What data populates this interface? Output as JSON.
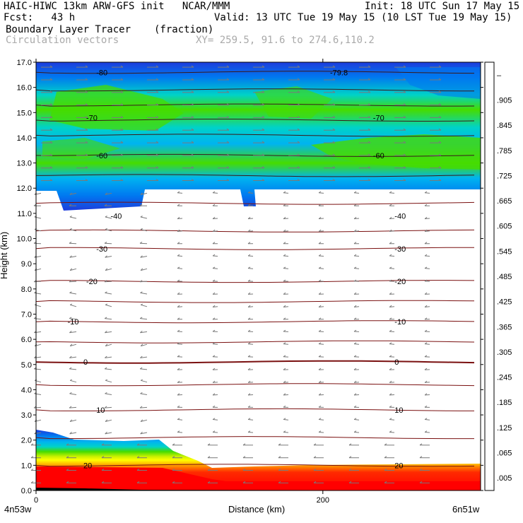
{
  "header": {
    "line1_left": "HAIC-HIWC 13km ARW-GFS init   NCAR/MMM",
    "line1_right": "Init: 18 UTC Sun 17 May 15",
    "line2_left": "Fcst:   43 h",
    "line2_right": "Valid: 13 UTC Tue 19 May 15 (10 LST Tue 19 May 15)",
    "line3_left": "Boundary Layer Tracer",
    "line3_mid": "(fraction)",
    "line4_left": "Circulation vectors",
    "line4_mid": "XY= 259.5, 91.6 to 274.6,110.2"
  },
  "chart_data": {
    "type": "heatmap",
    "xlabel": "Distance (km)",
    "ylabel": "Height (km)",
    "xlim": [
      0,
      310
    ],
    "ylim": [
      0,
      17
    ],
    "x_ticks": [
      {
        "value": 0,
        "label": "0"
      },
      {
        "value": 200,
        "label": "200"
      }
    ],
    "x_end_labels": {
      "left": "4n53w",
      "right": "6n51w"
    },
    "y_ticks": [
      "0.0",
      "1.0",
      "2.0",
      "3.0",
      "4.0",
      "5.0",
      "6.0",
      "7.0",
      "8.0",
      "9.0",
      "10.0",
      "11.0",
      "12.0",
      "13.0",
      "14.0",
      "15.0",
      "16.0",
      "17.0"
    ],
    "colorbar": {
      "labels": [
        "–",
        ".905",
        ".845",
        ".785",
        ".725",
        ".665",
        ".605",
        ".545",
        ".485",
        ".425",
        ".365",
        ".305",
        ".245",
        ".185",
        ".125",
        ".065",
        ".005"
      ],
      "colors": [
        "#ff0000",
        "#ff2a00",
        "#ff5000",
        "#ff7800",
        "#ff9a00",
        "#ffbe00",
        "#ffe000",
        "#ffff00",
        "#c8f000",
        "#96e600",
        "#46dc00",
        "#00d26e",
        "#00d2c8",
        "#00b4f0",
        "#0078f0",
        "#1e3cdc",
        "#ffffff"
      ]
    },
    "isotherm_labels": [
      {
        "text": "-80",
        "x": 42,
        "y": 16.6
      },
      {
        "text": "-79.8",
        "x": 205,
        "y": 16.6
      },
      {
        "text": "-70",
        "x": 35,
        "y": 14.8
      },
      {
        "text": "-70",
        "x": 235,
        "y": 14.8
      },
      {
        "text": "-60",
        "x": 42,
        "y": 13.3
      },
      {
        "text": "-60",
        "x": 235,
        "y": 13.3
      },
      {
        "text": "-40",
        "x": 52,
        "y": 10.9
      },
      {
        "text": "-40",
        "x": 250,
        "y": 10.9
      },
      {
        "text": "-30",
        "x": 42,
        "y": 9.6
      },
      {
        "text": "-30",
        "x": 250,
        "y": 9.6
      },
      {
        "text": "-20",
        "x": 35,
        "y": 8.3
      },
      {
        "text": "-20",
        "x": 250,
        "y": 8.3
      },
      {
        "text": "-10",
        "x": 22,
        "y": 6.7
      },
      {
        "text": "-10",
        "x": 250,
        "y": 6.7
      },
      {
        "text": "0",
        "x": 33,
        "y": 5.1
      },
      {
        "text": "0",
        "x": 250,
        "y": 5.1
      },
      {
        "text": "10",
        "x": 42,
        "y": 3.2
      },
      {
        "text": "10",
        "x": 250,
        "y": 3.2
      },
      {
        "text": "20",
        "x": 33,
        "y": 1.0
      },
      {
        "text": "20",
        "x": 250,
        "y": 1.0
      }
    ]
  }
}
